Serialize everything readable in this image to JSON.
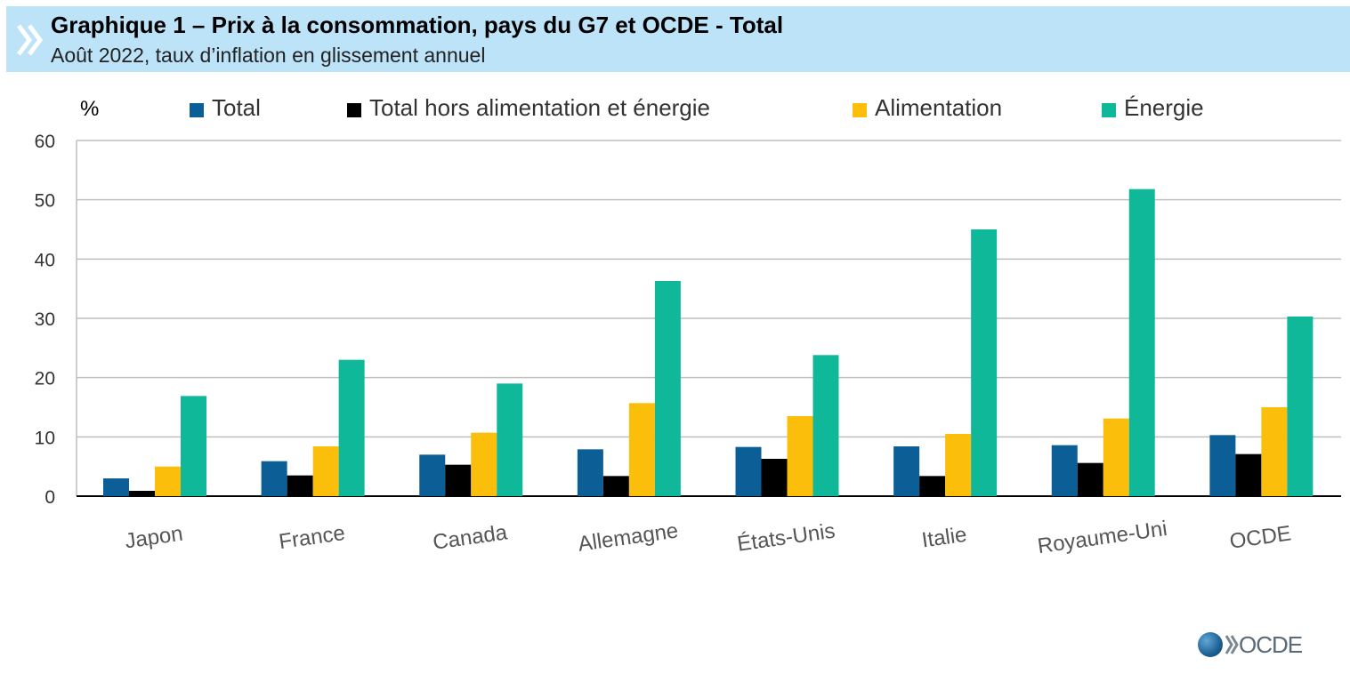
{
  "header": {
    "title": "Graphique 1 – Prix à la consommation, pays du G7 et OCDE - Total",
    "subtitle": "Août 2022, taux d’inflation en glissement annuel"
  },
  "logo": {
    "text": "OCDE",
    "icon": "oecd-globe-icon"
  },
  "chart_data": {
    "type": "bar",
    "y_unit_label": "%",
    "categories": [
      "Japon",
      "France",
      "Canada",
      "Allemagne",
      "États-Unis",
      "Italie",
      "Royaume-Uni",
      "OCDE"
    ],
    "series": [
      {
        "name": "Total",
        "color": "#0b5e96",
        "values": [
          3.0,
          5.9,
          7.0,
          7.9,
          8.3,
          8.4,
          8.6,
          10.3
        ]
      },
      {
        "name": "Total hors alimentation et énergie",
        "color": "#000000",
        "values": [
          0.9,
          3.5,
          5.3,
          3.4,
          6.3,
          3.4,
          5.6,
          7.1
        ]
      },
      {
        "name": "Alimentation",
        "color": "#fbbf0b",
        "values": [
          5.0,
          8.4,
          10.7,
          15.7,
          13.5,
          10.5,
          13.1,
          15.0
        ]
      },
      {
        "name": "Énergie",
        "color": "#10b89a",
        "values": [
          16.9,
          23.0,
          19.0,
          36.3,
          23.8,
          45.0,
          51.8,
          30.3
        ]
      }
    ],
    "ylim": [
      0,
      60
    ],
    "yticks": [
      0,
      10,
      20,
      30,
      40,
      50,
      60
    ],
    "grid": true,
    "legend_position": "top"
  }
}
